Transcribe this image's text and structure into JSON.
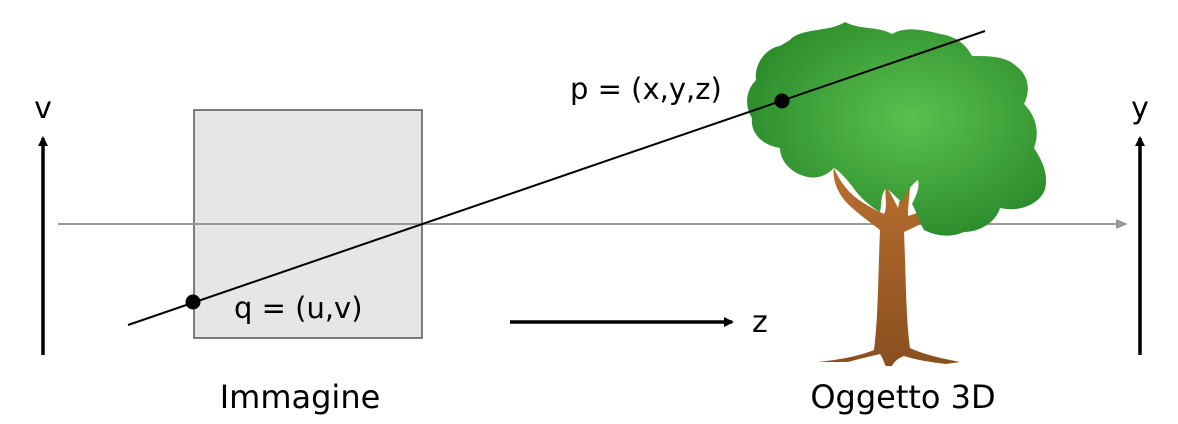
{
  "labels": {
    "v_axis": "v",
    "y_axis": "y",
    "z_axis": "z",
    "point_p": "p = (x,y,z)",
    "point_q": "q = (u,v)",
    "image_caption": "Immagine",
    "object_caption": "Oggetto 3D"
  },
  "colors": {
    "image_plane_fill": "#e6e6e6",
    "optical_axis": "#999999",
    "foliage": "#3a9a35",
    "trunk": "#a2612a"
  }
}
